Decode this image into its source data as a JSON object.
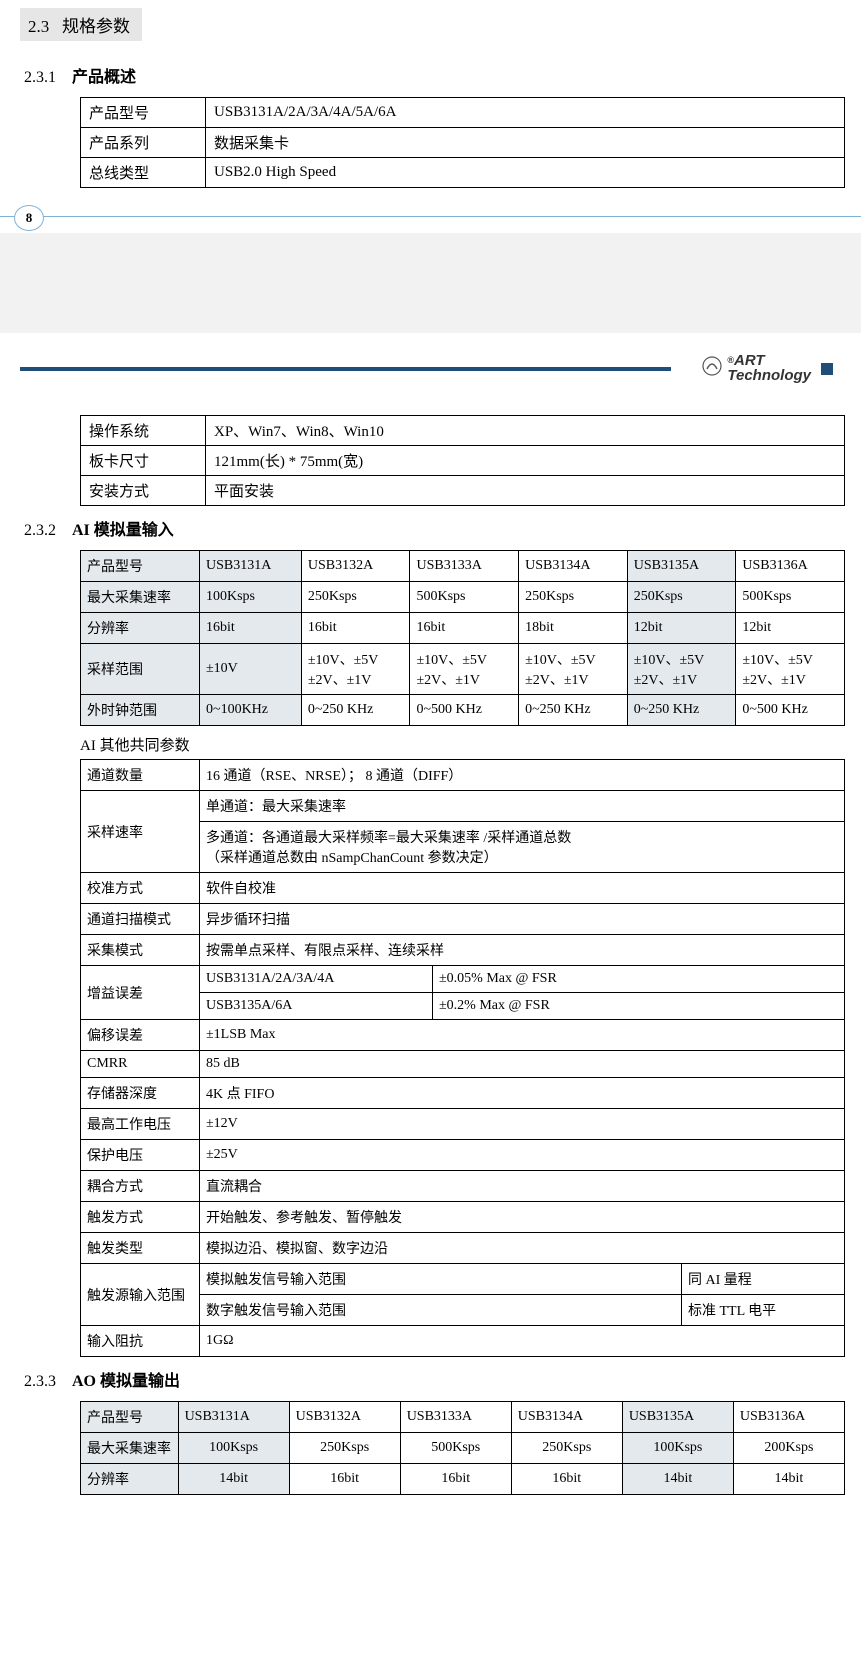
{
  "section": {
    "num": "2.3",
    "title": "规格参数"
  },
  "sub1": {
    "num": "2.3.1",
    "title": "产品概述",
    "rows": [
      [
        "产品型号",
        "USB3131A/2A/3A/4A/5A/6A"
      ],
      [
        "产品系列",
        "数据采集卡"
      ],
      [
        "总线类型",
        "USB2.0   High Speed"
      ]
    ]
  },
  "pagenum": "8",
  "sub1b_rows": [
    [
      "操作系统",
      "XP、Win7、Win8、Win10"
    ],
    [
      "板卡尺寸",
      "121mm(长) * 75mm(宽)"
    ],
    [
      "安装方式",
      "平面安装"
    ]
  ],
  "sub2": {
    "num": "2.3.2",
    "title": "AI 模拟量输入",
    "header": [
      "产品型号",
      "USB3131A",
      "USB3132A",
      "USB3133A",
      "USB3134A",
      "USB3135A",
      "USB3136A"
    ],
    "rows": [
      [
        "最大采集速率",
        "100Ksps",
        "250Ksps",
        "500Ksps",
        "250Ksps",
        "250Ksps",
        "500Ksps"
      ],
      [
        "分辨率",
        "16bit",
        "16bit",
        "16bit",
        "18bit",
        "12bit",
        "12bit"
      ],
      [
        "采样范围",
        "±10V",
        "±10V、±5V\n±2V、±1V",
        "±10V、±5V\n±2V、±1V",
        "±10V、±5V\n±2V、±1V",
        "±10V、±5V\n±2V、±1V",
        "±10V、±5V\n±2V、±1V"
      ],
      [
        "外时钟范围",
        "0~100KHz",
        "0~250 KHz",
        "0~500 KHz",
        "0~250 KHz",
        "0~250 KHz",
        "0~500 KHz"
      ]
    ],
    "caption": "AI 其他共同参数",
    "common": {
      "channels": [
        "通道数量",
        "16 通道（RSE、NRSE）；   8 通道（DIFF）"
      ],
      "samplerate_label": "采样速率",
      "samplerate_lines": [
        "单通道：最大采集速率",
        "多通道：各通道最大采样频率=最大采集速率  /采样通道总数\n（采样通道总数由 nSampChanCount 参数决定）"
      ],
      "simple": [
        [
          "校准方式",
          "软件自校准"
        ],
        [
          "通道扫描模式",
          "异步循环扫描"
        ],
        [
          "采集模式",
          "按需单点采样、有限点采样、连续采样"
        ]
      ],
      "gain_label": "增益误差",
      "gain_rows": [
        [
          "USB3131A/2A/3A/4A",
          "±0.05% Max @ FSR"
        ],
        [
          "USB3135A/6A",
          "±0.2% Max @ FSR"
        ]
      ],
      "more": [
        [
          "偏移误差",
          "±1LSB Max"
        ],
        [
          "CMRR",
          "85 dB"
        ],
        [
          "存储器深度",
          "4K  点 FIFO"
        ],
        [
          "最高工作电压",
          "±12V"
        ],
        [
          "保护电压",
          "±25V"
        ],
        [
          "耦合方式",
          "直流耦合"
        ],
        [
          "触发方式",
          "开始触发、参考触发、暂停触发"
        ],
        [
          "触发类型",
          "模拟边沿、模拟窗、数字边沿"
        ]
      ],
      "trig_label": "触发源输入范围",
      "trig_rows": [
        [
          "模拟触发信号输入范围",
          "同 AI 量程"
        ],
        [
          "数字触发信号输入范围",
          "标准 TTL 电平"
        ]
      ],
      "impedance": [
        "输入阻抗",
        "1GΩ"
      ]
    }
  },
  "sub3": {
    "num": "2.3.3",
    "title": "AO 模拟量输出",
    "header": [
      "产品型号",
      "USB3131A",
      "USB3132A",
      "USB3133A",
      "USB3134A",
      "USB3135A",
      "USB3136A"
    ],
    "rows": [
      [
        "最大采集速率",
        "100Ksps",
        "250Ksps",
        "500Ksps",
        "250Ksps",
        "100Ksps",
        "200Ksps"
      ],
      [
        "分辨率",
        "14bit",
        "16bit",
        "16bit",
        "16bit",
        "14bit",
        "14bit"
      ]
    ]
  },
  "colors": {
    "bar": "#1f4e79",
    "shade": "#e4e9ee",
    "line": "#7fb3d5"
  },
  "logo": {
    "top": "ART",
    "bottom": "Technology",
    "reg": "®"
  }
}
